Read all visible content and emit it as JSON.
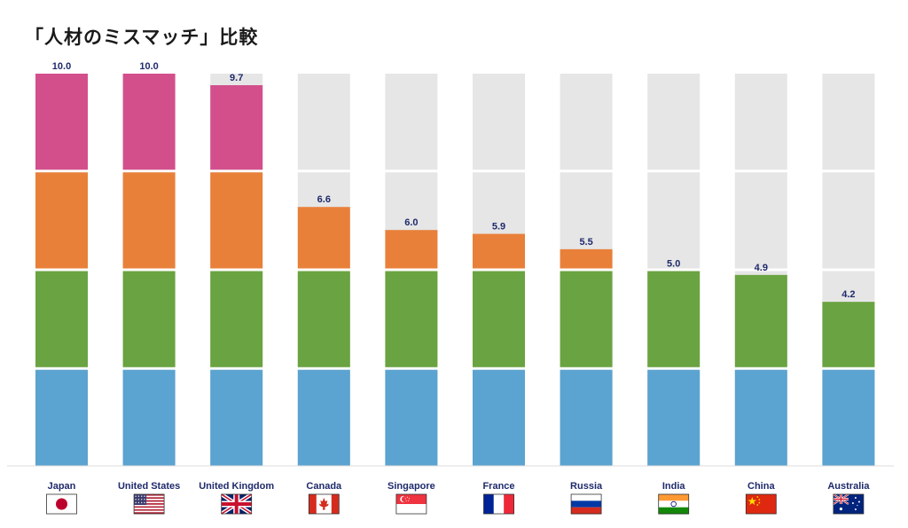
{
  "chart_data": {
    "type": "bar",
    "title": "「人材のミスマッチ」比較",
    "xlabel": "",
    "ylabel": "",
    "ylim": [
      0,
      10
    ],
    "segments": 4,
    "categories": [
      "Japan",
      "United States",
      "United Kingdom",
      "Canada",
      "Singapore",
      "France",
      "Russia",
      "India",
      "China",
      "Australia"
    ],
    "values": [
      10.0,
      10.0,
      9.7,
      6.6,
      6.0,
      5.9,
      5.5,
      5.0,
      4.9,
      4.2
    ],
    "value_labels": [
      "10.0",
      "10.0",
      "9.7",
      "6.6",
      "6.0",
      "5.9",
      "5.5",
      "5.0",
      "4.9",
      "4.2"
    ],
    "flags": [
      "japan-flag",
      "us-flag",
      "uk-flag",
      "canada-flag",
      "singapore-flag",
      "france-flag",
      "russia-flag",
      "india-flag",
      "china-flag",
      "australia-flag"
    ],
    "colors": {
      "band_1": "#5ba3d0",
      "band_2": "#6aa341",
      "band_3": "#e8803a",
      "band_4": "#d34f8c",
      "background_bar": "#e6e6e6",
      "value_label": "#1f2a6b",
      "category_label": "#1f2a6b"
    },
    "grid": false,
    "legend": "none"
  }
}
